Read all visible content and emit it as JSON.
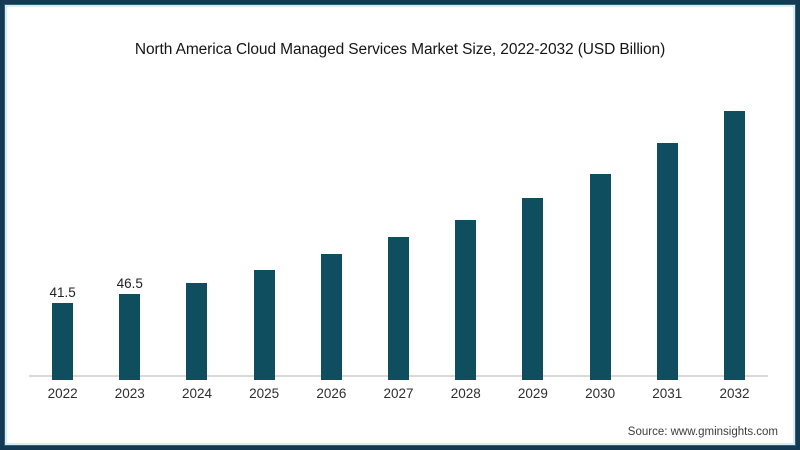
{
  "page": {
    "frame_border_color": "#143952",
    "frame_inner_edge_color": "#dceaf2",
    "background_color": "#ffffff"
  },
  "header": {
    "title": "North America Cloud Managed Services Market Size, 2022-2032 (USD Billion)"
  },
  "footer": {
    "source_label": "Source: www.gminsights.com"
  },
  "chart_data": {
    "type": "bar",
    "title": "North America Cloud Managed Services Market Size, 2022-2032 (USD Billion)",
    "units": "USD Billion",
    "categories": [
      "2022",
      "2023",
      "2024",
      "2025",
      "2026",
      "2027",
      "2028",
      "2029",
      "2030",
      "2031",
      "2032"
    ],
    "values": [
      41.5,
      46.5,
      52.5,
      59.5,
      68,
      77,
      86.5,
      98,
      111,
      127.5,
      145
    ],
    "shown_value_labels": [
      "41.5",
      "46.5",
      "",
      "",
      "",
      "",
      "",
      "",
      "",
      "",
      ""
    ],
    "bar_color": "#0e4e5f",
    "axis_line_color": "#d9d9d9",
    "xlabel": "",
    "ylabel": "",
    "ylim": [
      0,
      150
    ],
    "gridlines": false,
    "legend_position": "none"
  }
}
